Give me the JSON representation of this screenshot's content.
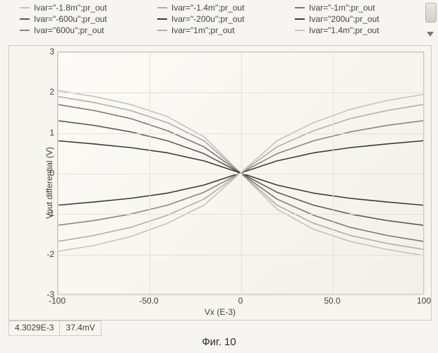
{
  "background_color": "#f7f5f1",
  "legend": {
    "font_size": 12,
    "text_color": "#454540",
    "items": [
      {
        "label": "Ivar=\"-1.8m\";pr_out",
        "color": "#c9c2b0"
      },
      {
        "label": "Ivar=\"-1.4m\";pr_out",
        "color": "#a8aeb4"
      },
      {
        "label": "Ivar=\"-1m\";pr_out",
        "color": "#7d7a6f"
      },
      {
        "label": "Ivar=\"-600u\";pr_out",
        "color": "#5a5d55"
      },
      {
        "label": "Ivar=\"-200u\";pr_out",
        "color": "#3a3c37"
      },
      {
        "label": "Ivar=\"200u\";pr_out",
        "color": "#3a3c37"
      },
      {
        "label": "Ivar=\"600u\";pr_out",
        "color": "#8a887d"
      },
      {
        "label": "Ivar=\"1m\";pr_out",
        "color": "#b3afa3"
      },
      {
        "label": "Ivar=\"1.4m\";pr_out",
        "color": "#c8c3b6"
      }
    ]
  },
  "chart": {
    "type": "line",
    "xlabel": "Vx (E-3)",
    "ylabel": "Vout differential (V)",
    "xlim": [
      -100,
      100
    ],
    "ylim": [
      -3,
      3
    ],
    "xticks": [
      -100,
      -50.0,
      0,
      50.0,
      100
    ],
    "xtick_labels": [
      "-100",
      "-50.0",
      "0",
      "50.0",
      "100"
    ],
    "yticks": [
      -3,
      -2,
      -1,
      0,
      1,
      2,
      3
    ],
    "ytick_labels": [
      "-3",
      "-2",
      "-1",
      "0",
      "1",
      "2",
      "3"
    ],
    "grid_color": "#e4e1d8",
    "axis_color": "#c9c5ba",
    "label_fontsize": 12,
    "plot_bg_from": "#fdfbf7",
    "plot_bg_to": "#f3f0e9",
    "line_width": 1.6,
    "x": [
      -100,
      -80,
      -60,
      -40,
      -20,
      0,
      20,
      40,
      60,
      80,
      100
    ],
    "series": [
      {
        "name": "-1.8m",
        "color": "#c9c2b0",
        "y": [
          2.05,
          1.9,
          1.7,
          1.4,
          0.9,
          0.0,
          -0.9,
          -1.4,
          -1.7,
          -1.9,
          -2.05
        ]
      },
      {
        "name": "-1.4m",
        "color": "#a8aeb4",
        "y": [
          1.9,
          1.75,
          1.55,
          1.25,
          0.8,
          0.0,
          -0.8,
          -1.25,
          -1.55,
          -1.75,
          -1.9
        ]
      },
      {
        "name": "-1m",
        "color": "#7d7a6f",
        "y": [
          1.7,
          1.55,
          1.35,
          1.05,
          0.65,
          0.0,
          -0.65,
          -1.05,
          -1.35,
          -1.55,
          -1.7
        ]
      },
      {
        "name": "-600u",
        "color": "#5a5d55",
        "y": [
          1.3,
          1.18,
          1.02,
          0.8,
          0.48,
          0.0,
          -0.48,
          -0.8,
          -1.02,
          -1.18,
          -1.3
        ]
      },
      {
        "name": "-200u",
        "color": "#3a3c37",
        "y": [
          0.8,
          0.72,
          0.63,
          0.5,
          0.3,
          0.0,
          -0.3,
          -0.5,
          -0.63,
          -0.72,
          -0.8
        ]
      },
      {
        "name": "200u",
        "color": "#3a3c37",
        "y": [
          -0.8,
          -0.72,
          -0.63,
          -0.5,
          -0.3,
          0.0,
          0.3,
          0.5,
          0.63,
          0.72,
          0.8
        ]
      },
      {
        "name": "600u",
        "color": "#8a887d",
        "y": [
          -1.3,
          -1.18,
          -1.02,
          -0.8,
          -0.48,
          0.0,
          0.48,
          0.8,
          1.02,
          1.18,
          1.3
        ]
      },
      {
        "name": "1m",
        "color": "#b3afa3",
        "y": [
          -1.7,
          -1.55,
          -1.35,
          -1.05,
          -0.65,
          0.0,
          0.65,
          1.05,
          1.35,
          1.55,
          1.7
        ]
      },
      {
        "name": "1.4m",
        "color": "#c8c3b6",
        "y": [
          -1.95,
          -1.8,
          -1.58,
          -1.25,
          -0.8,
          0.0,
          0.8,
          1.25,
          1.58,
          1.8,
          1.95
        ]
      }
    ]
  },
  "readout": {
    "x_value": "4.3029E-3",
    "y_value": "37.4mV"
  },
  "caption": "Фиг. 10"
}
